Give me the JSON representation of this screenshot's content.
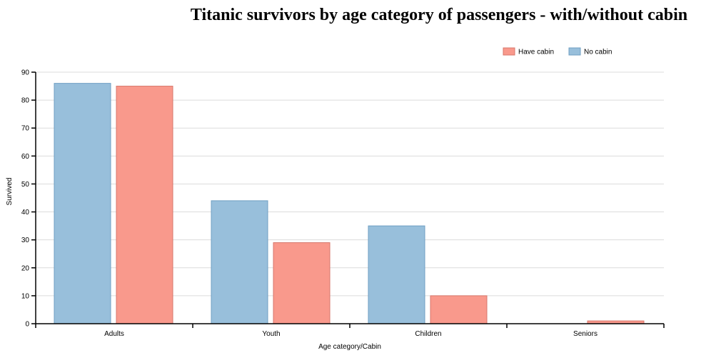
{
  "colors": {
    "no_cabin_fill": "#98bfdb",
    "no_cabin_stroke": "#6f9fc3",
    "have_cabin_fill": "#f9998c",
    "have_cabin_stroke": "#d8776b"
  },
  "chart_data": {
    "type": "bar",
    "title": "Titanic survivors by age category of passengers - with/without cabin",
    "xlabel": "Age category/Cabin",
    "ylabel": "Survived",
    "categories": [
      "Adults",
      "Youth",
      "Children",
      "Seniors"
    ],
    "series": [
      {
        "name": "No cabin",
        "values": [
          86,
          44,
          35,
          0
        ]
      },
      {
        "name": "Have cabin",
        "values": [
          85,
          29,
          10,
          1
        ]
      }
    ],
    "ylim": [
      0,
      90
    ],
    "yticks": [
      0,
      10,
      20,
      30,
      40,
      50,
      60,
      70,
      80,
      90
    ],
    "grid": true,
    "legend": {
      "position": "top-right",
      "order": [
        "Have cabin",
        "No cabin"
      ]
    }
  }
}
